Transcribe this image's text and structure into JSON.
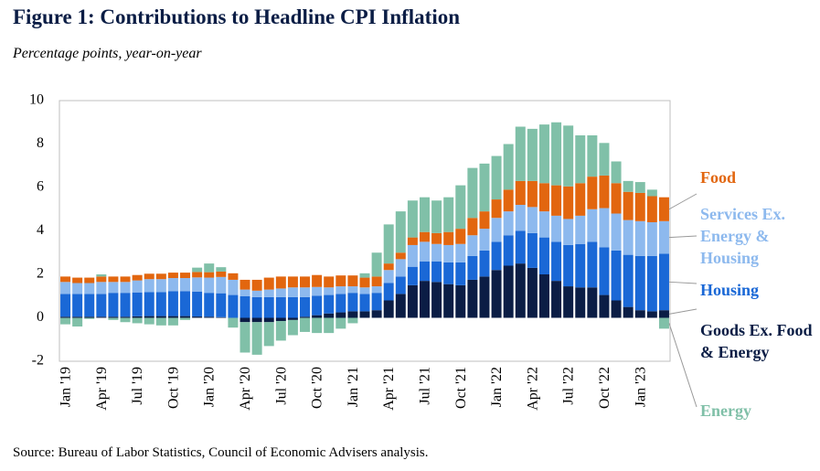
{
  "chart_data": {
    "type": "stacked-bar",
    "title": "Figure 1: Contributions to Headline CPI Inflation",
    "subtitle": "Percentage points, year-on-year",
    "source": "Source: Bureau of Labor Statistics, Council of Economic Advisers analysis.",
    "categories": [
      "Jan '19",
      null,
      null,
      "Apr '19",
      null,
      null,
      "Jul '19",
      null,
      null,
      "Oct '19",
      null,
      null,
      "Jan '20",
      null,
      null,
      "Apr '20",
      null,
      null,
      "Jul '20",
      null,
      null,
      "Oct '20",
      null,
      null,
      "Jan '21",
      null,
      null,
      "Apr '21",
      null,
      null,
      "Jul '21",
      null,
      null,
      "Oct '21",
      null,
      null,
      "Jan '22",
      null,
      null,
      "Apr '22",
      null,
      null,
      "Jul '22",
      null,
      null,
      "Oct '22",
      null,
      null,
      "Jan '23",
      null,
      null
    ],
    "ylim": [
      -2,
      10
    ],
    "yticks": [
      -2,
      0,
      2,
      4,
      6,
      8,
      10
    ],
    "grid": false,
    "series": [
      {
        "name": "Goods Ex. Food & Energy",
        "color": "#0b1d45",
        "values": [
          0.05,
          0.05,
          0.05,
          0.05,
          0.05,
          0.05,
          0.07,
          0.08,
          0.08,
          0.08,
          0.08,
          0.06,
          0.05,
          0.03,
          0.0,
          -0.2,
          -0.2,
          -0.2,
          -0.15,
          -0.1,
          0.05,
          0.12,
          0.2,
          0.25,
          0.3,
          0.3,
          0.35,
          0.8,
          1.1,
          1.5,
          1.7,
          1.65,
          1.55,
          1.5,
          1.75,
          1.9,
          2.2,
          2.4,
          2.5,
          2.3,
          2.0,
          1.7,
          1.45,
          1.4,
          1.4,
          1.05,
          0.8,
          0.5,
          0.35,
          0.3,
          0.35
        ]
      },
      {
        "name": "Housing",
        "color": "#1a68d6",
        "values": [
          1.05,
          1.05,
          1.05,
          1.05,
          1.1,
          1.1,
          1.1,
          1.1,
          1.1,
          1.15,
          1.15,
          1.15,
          1.1,
          1.1,
          1.05,
          1.0,
          0.95,
          0.95,
          0.95,
          0.95,
          0.9,
          0.9,
          0.85,
          0.85,
          0.85,
          0.8,
          0.8,
          0.8,
          0.8,
          0.85,
          0.9,
          0.95,
          1.0,
          1.05,
          1.1,
          1.2,
          1.3,
          1.4,
          1.5,
          1.6,
          1.7,
          1.8,
          1.9,
          2.0,
          2.1,
          2.2,
          2.3,
          2.4,
          2.5,
          2.55,
          2.6
        ]
      },
      {
        "name": "Services Ex. Energy & Housing",
        "color": "#8db9ee",
        "values": [
          0.55,
          0.5,
          0.5,
          0.55,
          0.5,
          0.5,
          0.55,
          0.6,
          0.6,
          0.6,
          0.6,
          0.65,
          0.7,
          0.75,
          0.7,
          0.3,
          0.3,
          0.35,
          0.4,
          0.45,
          0.45,
          0.4,
          0.35,
          0.35,
          0.3,
          0.3,
          0.3,
          0.6,
          0.8,
          1.0,
          0.9,
          0.8,
          0.8,
          0.85,
          0.95,
          1.0,
          1.1,
          1.1,
          1.2,
          1.2,
          1.2,
          1.2,
          1.2,
          1.3,
          1.5,
          1.8,
          1.7,
          1.6,
          1.6,
          1.55,
          1.5
        ]
      },
      {
        "name": "Food",
        "color": "#e2660f",
        "values": [
          0.25,
          0.25,
          0.25,
          0.25,
          0.25,
          0.25,
          0.25,
          0.25,
          0.25,
          0.25,
          0.25,
          0.25,
          0.25,
          0.25,
          0.3,
          0.45,
          0.5,
          0.55,
          0.55,
          0.5,
          0.5,
          0.55,
          0.5,
          0.5,
          0.5,
          0.45,
          0.45,
          0.3,
          0.3,
          0.35,
          0.45,
          0.5,
          0.6,
          0.7,
          0.8,
          0.8,
          0.85,
          1.0,
          1.1,
          1.2,
          1.3,
          1.4,
          1.5,
          1.5,
          1.5,
          1.5,
          1.4,
          1.3,
          1.3,
          1.2,
          1.1
        ]
      },
      {
        "name": "Energy",
        "color": "#80c0a8",
        "values": [
          -0.3,
          -0.4,
          -0.05,
          0.1,
          -0.1,
          -0.2,
          -0.25,
          -0.3,
          -0.35,
          -0.35,
          -0.1,
          0.2,
          0.4,
          0.2,
          -0.45,
          -1.4,
          -1.5,
          -1.1,
          -0.9,
          -0.7,
          -0.65,
          -0.7,
          -0.7,
          -0.5,
          -0.25,
          0.2,
          1.1,
          1.8,
          1.9,
          1.7,
          1.6,
          1.5,
          1.6,
          2.0,
          2.3,
          2.2,
          2.0,
          2.1,
          2.5,
          2.4,
          2.7,
          2.9,
          2.8,
          2.2,
          1.9,
          1.5,
          1.0,
          0.5,
          0.5,
          0.3,
          -0.5
        ]
      }
    ]
  }
}
